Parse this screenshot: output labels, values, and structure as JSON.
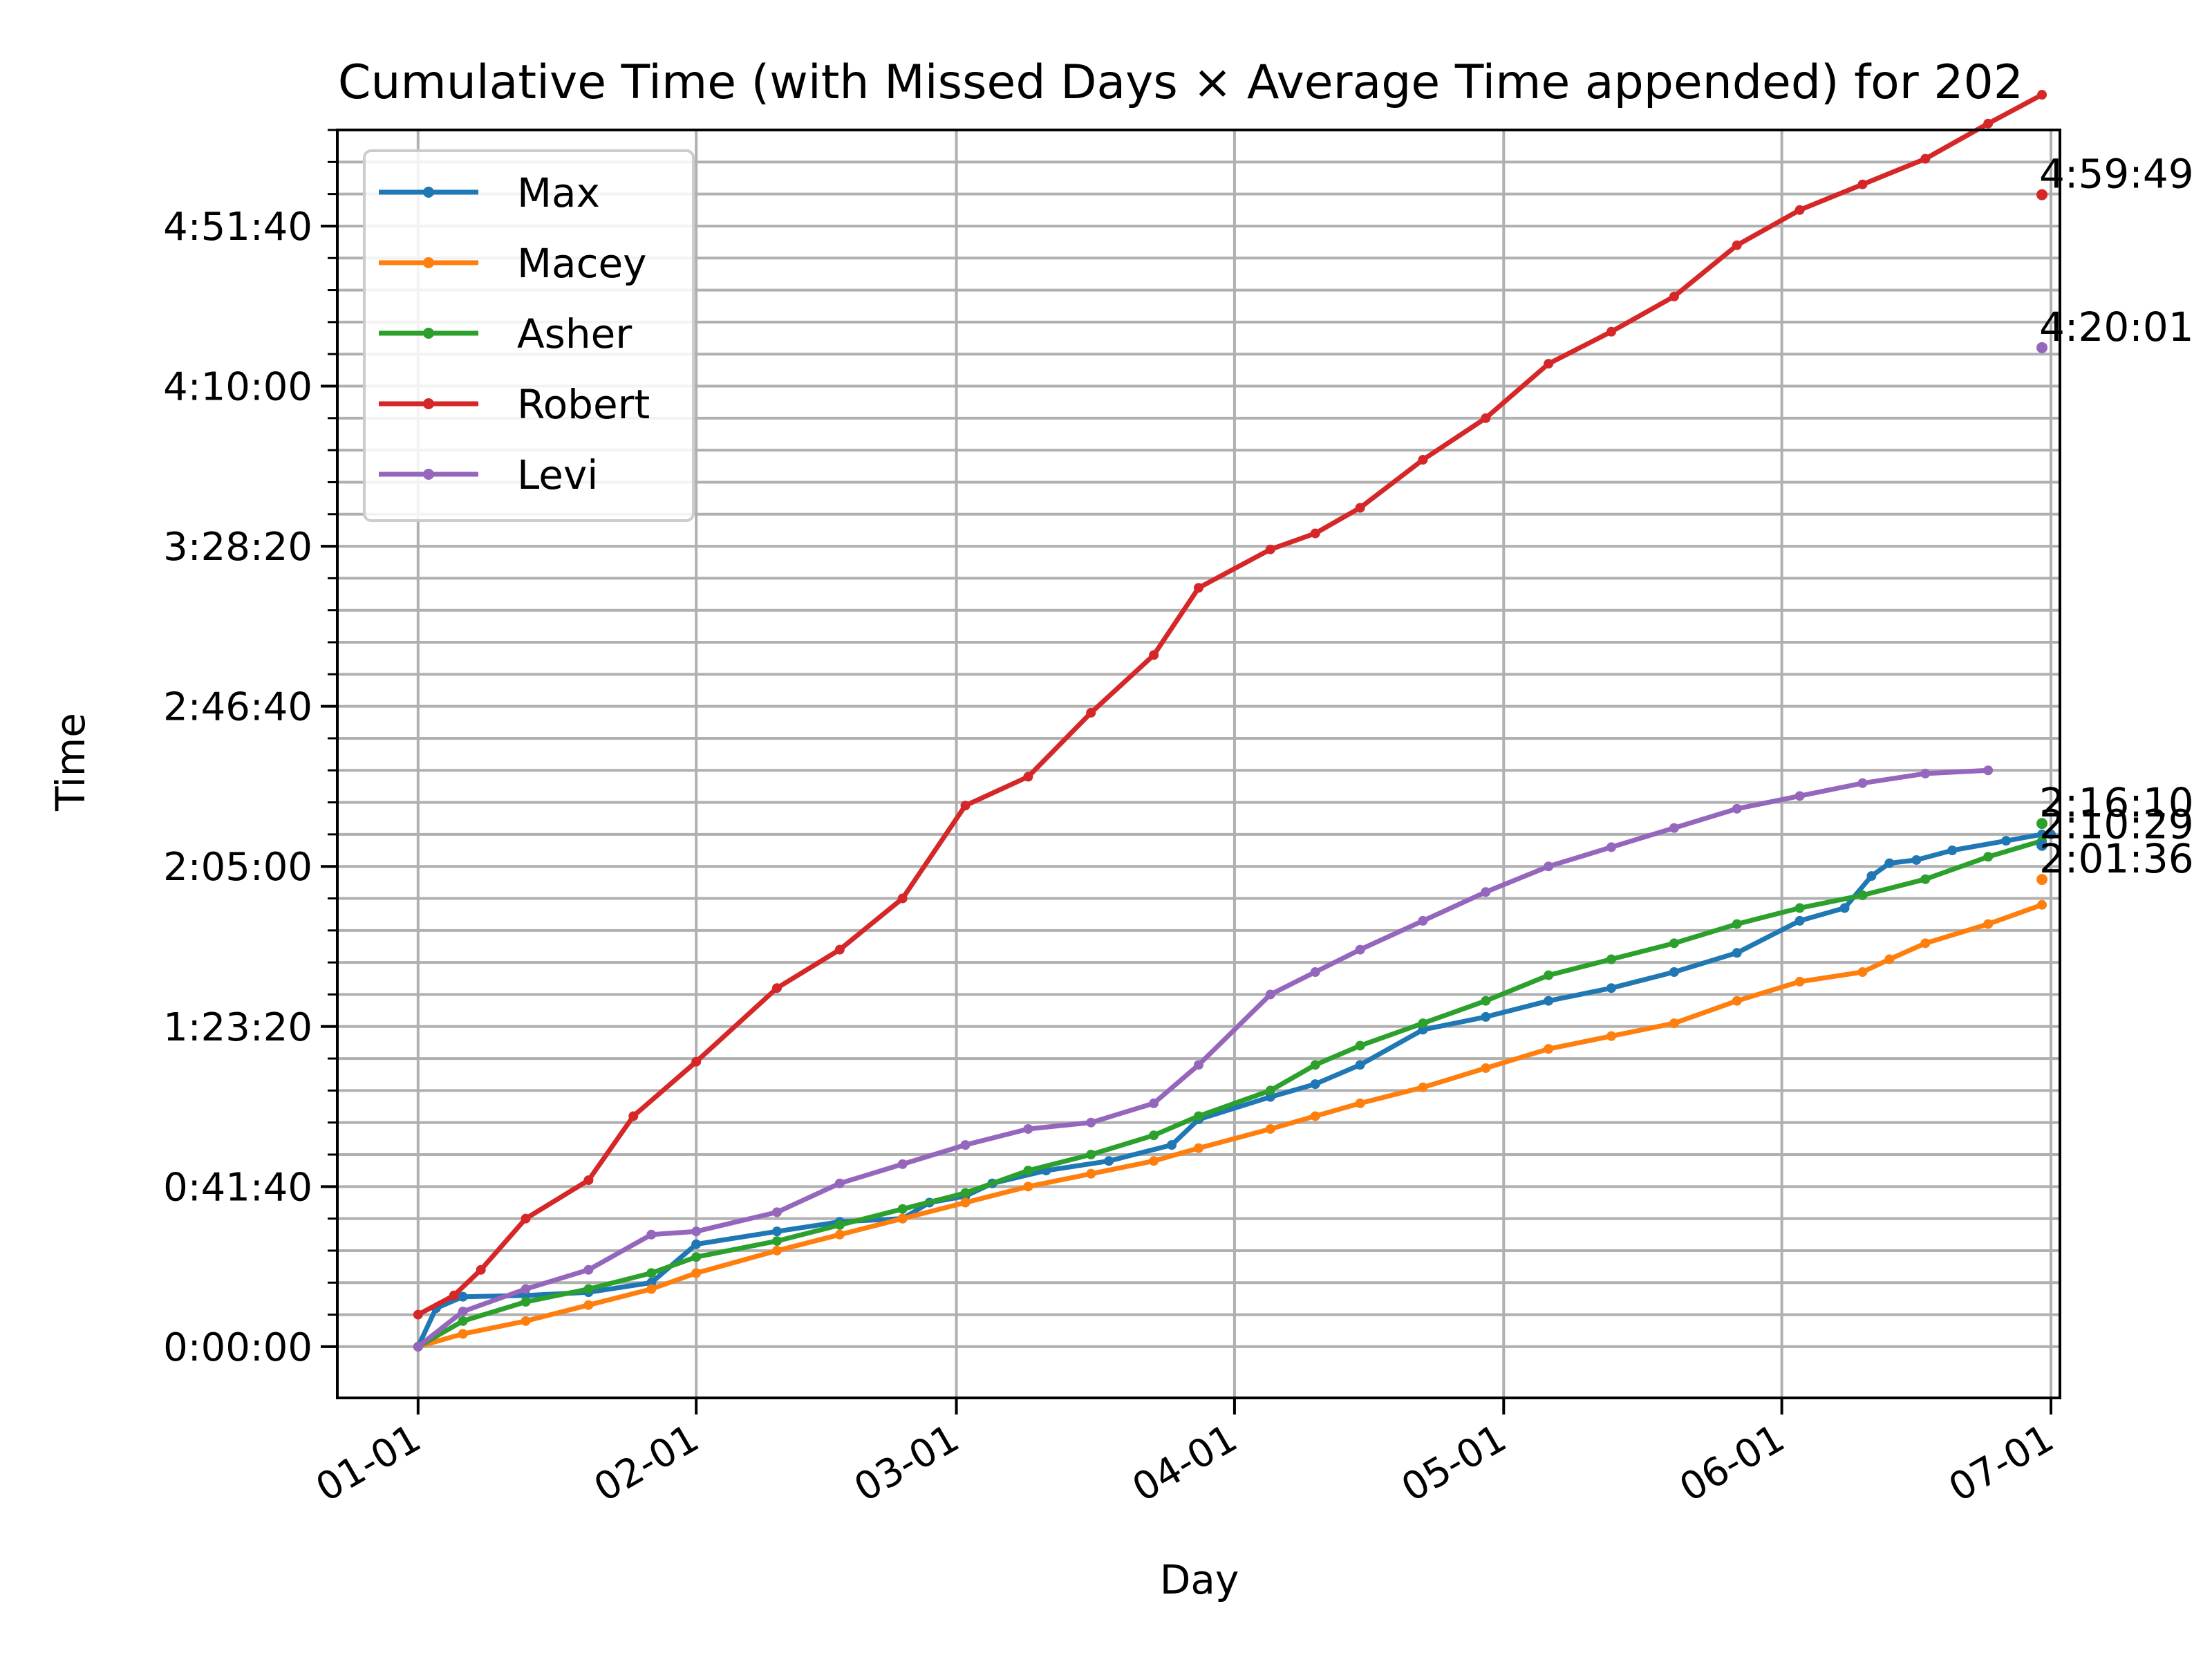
{
  "chart_data": {
    "type": "line",
    "title": "Cumulative Time (with Missed Days × Average Time appended) for 202",
    "xlabel": "Day",
    "ylabel": "Time",
    "x_tick_labels": [
      "01-01",
      "02-01",
      "03-01",
      "04-01",
      "05-01",
      "06-01",
      "07-01"
    ],
    "y_tick_labels": [
      "0:00:00",
      "0:41:40",
      "1:23:20",
      "2:05:00",
      "2:46:40",
      "3:28:20",
      "4:10:00",
      "4:51:40"
    ],
    "x_tick_dates": [
      "2024-01-01",
      "2024-02-01",
      "2024-03-01",
      "2024-04-01",
      "2024-05-01",
      "2024-06-01",
      "2024-07-01"
    ],
    "y_tick_seconds": [
      0,
      2500,
      5000,
      7500,
      10000,
      12500,
      15000,
      17500
    ],
    "xlim": [
      "2023-12-23",
      "2024-07-02"
    ],
    "ylim_seconds": [
      -800,
      19000
    ],
    "grid": true,
    "legend_position": "upper-left",
    "series": [
      {
        "name": "Max",
        "color": "#1f77b4",
        "points": [
          [
            "2024-01-01",
            0
          ],
          [
            "2024-01-03",
            600
          ],
          [
            "2024-01-06",
            780
          ],
          [
            "2024-01-13",
            800
          ],
          [
            "2024-01-20",
            850
          ],
          [
            "2024-01-27",
            1000
          ],
          [
            "2024-02-01",
            1600
          ],
          [
            "2024-02-10",
            1800
          ],
          [
            "2024-02-17",
            1950
          ],
          [
            "2024-02-24",
            2000
          ],
          [
            "2024-02-27",
            2250
          ],
          [
            "2024-03-02",
            2350
          ],
          [
            "2024-03-05",
            2550
          ],
          [
            "2024-03-11",
            2750
          ],
          [
            "2024-03-18",
            2900
          ],
          [
            "2024-03-25",
            3150
          ],
          [
            "2024-03-28",
            3550
          ],
          [
            "2024-04-05",
            3900
          ],
          [
            "2024-04-10",
            4100
          ],
          [
            "2024-04-15",
            4400
          ],
          [
            "2024-04-22",
            4950
          ],
          [
            "2024-04-29",
            5150
          ],
          [
            "2024-05-06",
            5400
          ],
          [
            "2024-05-13",
            5600
          ],
          [
            "2024-05-20",
            5850
          ],
          [
            "2024-05-27",
            6150
          ],
          [
            "2024-06-03",
            6650
          ],
          [
            "2024-06-08",
            6850
          ],
          [
            "2024-06-11",
            7350
          ],
          [
            "2024-06-13",
            7550
          ],
          [
            "2024-06-16",
            7600
          ],
          [
            "2024-06-20",
            7750
          ],
          [
            "2024-06-26",
            7900
          ],
          [
            "2024-06-30",
            8000
          ],
          [
            "2024-07-01",
            8000
          ]
        ],
        "final_label": "2:10:29",
        "final_seconds": 7829
      },
      {
        "name": "Macey",
        "color": "#ff7f0e",
        "points": [
          [
            "2024-01-01",
            0
          ],
          [
            "2024-01-06",
            200
          ],
          [
            "2024-01-13",
            400
          ],
          [
            "2024-01-20",
            650
          ],
          [
            "2024-01-27",
            900
          ],
          [
            "2024-02-01",
            1150
          ],
          [
            "2024-02-10",
            1500
          ],
          [
            "2024-02-17",
            1750
          ],
          [
            "2024-02-24",
            2000
          ],
          [
            "2024-03-02",
            2250
          ],
          [
            "2024-03-09",
            2500
          ],
          [
            "2024-03-16",
            2700
          ],
          [
            "2024-03-23",
            2900
          ],
          [
            "2024-03-28",
            3100
          ],
          [
            "2024-04-05",
            3400
          ],
          [
            "2024-04-10",
            3600
          ],
          [
            "2024-04-15",
            3800
          ],
          [
            "2024-04-22",
            4050
          ],
          [
            "2024-04-29",
            4350
          ],
          [
            "2024-05-06",
            4650
          ],
          [
            "2024-05-13",
            4850
          ],
          [
            "2024-05-20",
            5050
          ],
          [
            "2024-05-27",
            5400
          ],
          [
            "2024-06-03",
            5700
          ],
          [
            "2024-06-10",
            5850
          ],
          [
            "2024-06-13",
            6050
          ],
          [
            "2024-06-17",
            6300
          ],
          [
            "2024-06-24",
            6600
          ],
          [
            "2024-06-30",
            6900
          ]
        ],
        "final_label": "2:01:36",
        "final_seconds": 7296
      },
      {
        "name": "Asher",
        "color": "#2ca02c",
        "points": [
          [
            "2024-01-01",
            0
          ],
          [
            "2024-01-06",
            400
          ],
          [
            "2024-01-13",
            700
          ],
          [
            "2024-01-20",
            900
          ],
          [
            "2024-01-27",
            1150
          ],
          [
            "2024-02-01",
            1400
          ],
          [
            "2024-02-10",
            1650
          ],
          [
            "2024-02-17",
            1900
          ],
          [
            "2024-02-24",
            2150
          ],
          [
            "2024-03-02",
            2400
          ],
          [
            "2024-03-09",
            2750
          ],
          [
            "2024-03-16",
            3000
          ],
          [
            "2024-03-23",
            3300
          ],
          [
            "2024-03-28",
            3600
          ],
          [
            "2024-04-05",
            4000
          ],
          [
            "2024-04-10",
            4400
          ],
          [
            "2024-04-15",
            4700
          ],
          [
            "2024-04-22",
            5050
          ],
          [
            "2024-04-29",
            5400
          ],
          [
            "2024-05-06",
            5800
          ],
          [
            "2024-05-13",
            6050
          ],
          [
            "2024-05-20",
            6300
          ],
          [
            "2024-05-27",
            6600
          ],
          [
            "2024-06-03",
            6850
          ],
          [
            "2024-06-10",
            7050
          ],
          [
            "2024-06-17",
            7300
          ],
          [
            "2024-06-24",
            7650
          ],
          [
            "2024-06-30",
            7900
          ]
        ],
        "final_label": "2:16:10",
        "final_seconds": 8170
      },
      {
        "name": "Robert",
        "color": "#d62728",
        "points": [
          [
            "2024-01-01",
            500
          ],
          [
            "2024-01-05",
            800
          ],
          [
            "2024-01-08",
            1200
          ],
          [
            "2024-01-13",
            2000
          ],
          [
            "2024-01-20",
            2600
          ],
          [
            "2024-01-25",
            3600
          ],
          [
            "2024-02-01",
            4450
          ],
          [
            "2024-02-10",
            5600
          ],
          [
            "2024-02-17",
            6200
          ],
          [
            "2024-02-24",
            7000
          ],
          [
            "2024-03-02",
            8450
          ],
          [
            "2024-03-09",
            8900
          ],
          [
            "2024-03-16",
            9900
          ],
          [
            "2024-03-23",
            10800
          ],
          [
            "2024-03-28",
            11850
          ],
          [
            "2024-04-05",
            12450
          ],
          [
            "2024-04-10",
            12700
          ],
          [
            "2024-04-15",
            13100
          ],
          [
            "2024-04-22",
            13850
          ],
          [
            "2024-04-29",
            14500
          ],
          [
            "2024-05-06",
            15350
          ],
          [
            "2024-05-13",
            15850
          ],
          [
            "2024-05-20",
            16400
          ],
          [
            "2024-05-27",
            17200
          ],
          [
            "2024-06-03",
            17750
          ],
          [
            "2024-06-10",
            18150
          ],
          [
            "2024-06-17",
            18550
          ],
          [
            "2024-06-24",
            19100
          ],
          [
            "2024-06-30",
            19550
          ]
        ],
        "final_label": "4:59:49",
        "final_seconds": 17989
      },
      {
        "name": "Levi",
        "color": "#9467bd",
        "points": [
          [
            "2024-01-01",
            0
          ],
          [
            "2024-01-06",
            550
          ],
          [
            "2024-01-13",
            900
          ],
          [
            "2024-01-20",
            1200
          ],
          [
            "2024-01-27",
            1750
          ],
          [
            "2024-02-01",
            1800
          ],
          [
            "2024-02-10",
            2100
          ],
          [
            "2024-02-17",
            2550
          ],
          [
            "2024-02-24",
            2850
          ],
          [
            "2024-03-02",
            3150
          ],
          [
            "2024-03-09",
            3400
          ],
          [
            "2024-03-16",
            3500
          ],
          [
            "2024-03-23",
            3800
          ],
          [
            "2024-03-28",
            4400
          ],
          [
            "2024-04-05",
            5500
          ],
          [
            "2024-04-10",
            5850
          ],
          [
            "2024-04-15",
            6200
          ],
          [
            "2024-04-22",
            6650
          ],
          [
            "2024-04-29",
            7100
          ],
          [
            "2024-05-06",
            7500
          ],
          [
            "2024-05-13",
            7800
          ],
          [
            "2024-05-20",
            8100
          ],
          [
            "2024-05-27",
            8400
          ],
          [
            "2024-06-03",
            8600
          ],
          [
            "2024-06-10",
            8800
          ],
          [
            "2024-06-17",
            8950
          ],
          [
            "2024-06-24",
            9000
          ]
        ],
        "final_label": "4:20:01",
        "final_seconds": 15601
      }
    ]
  }
}
